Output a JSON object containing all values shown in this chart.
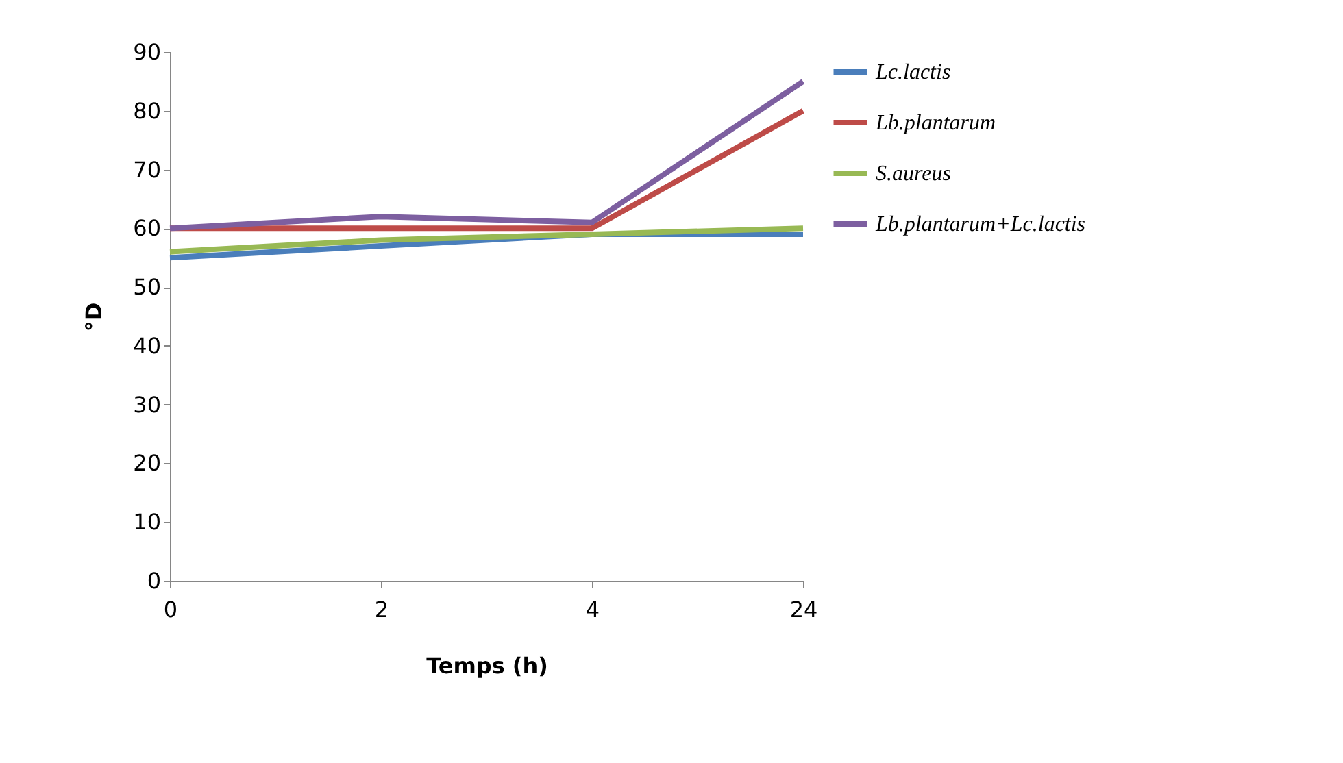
{
  "chart_data": {
    "type": "line",
    "xlabel": "Temps (h)",
    "ylabel": "°D",
    "categories": [
      "0",
      "2",
      "4",
      "24"
    ],
    "series": [
      {
        "name": "Lc.lactis",
        "color": "#4a7ebb",
        "values": [
          55,
          57,
          59,
          59
        ]
      },
      {
        "name": "Lb.plantarum",
        "color": "#be4b48",
        "values": [
          60,
          60,
          60,
          80
        ]
      },
      {
        "name": "S.aureus",
        "color": "#98b954",
        "values": [
          56,
          58,
          59,
          60
        ]
      },
      {
        "name": "Lb.plantarum+Lc.lactis",
        "color": "#7d5fa0",
        "values": [
          60,
          62,
          61,
          85
        ]
      }
    ],
    "ylim": [
      0,
      90
    ],
    "yticks": [
      0,
      10,
      20,
      30,
      40,
      50,
      60,
      70,
      80,
      90
    ],
    "grid": false,
    "legend": "right",
    "marker": "none",
    "line_style": "solid"
  }
}
